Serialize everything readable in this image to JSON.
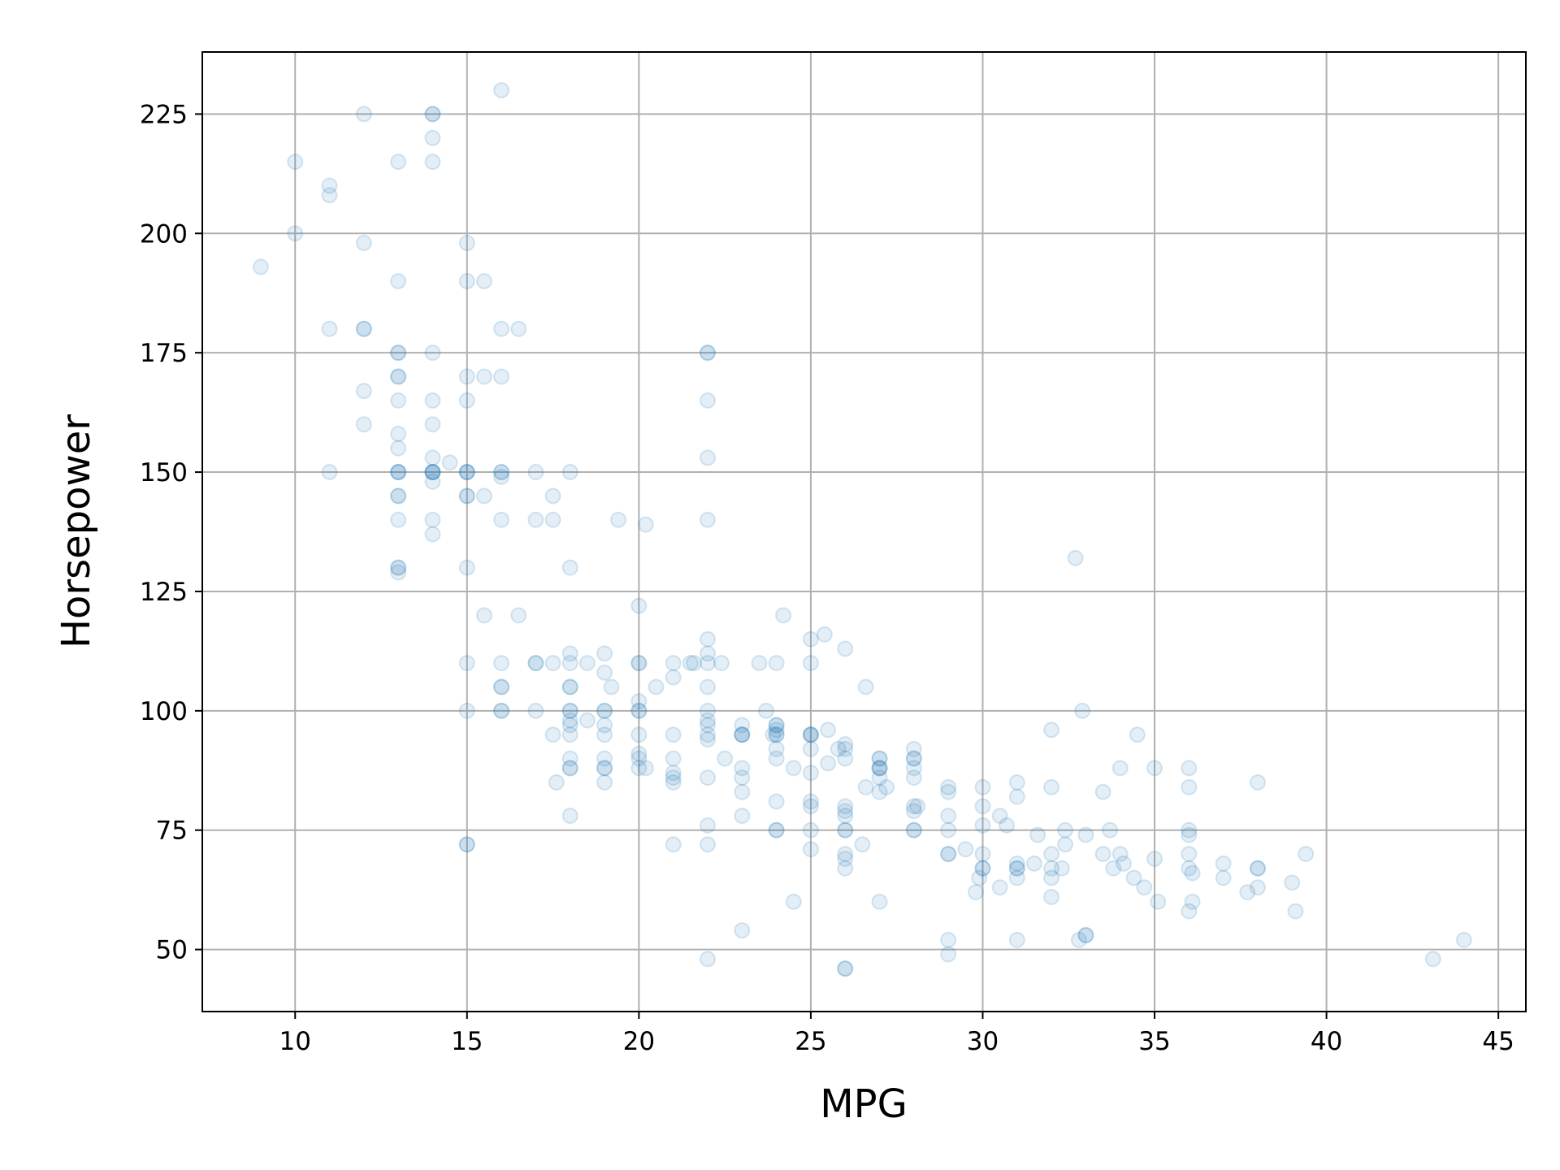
{
  "chart_data": {
    "type": "scatter",
    "title": "",
    "xlabel": "MPG",
    "ylabel": "Horsepower",
    "xlim": [
      7.3,
      45.8
    ],
    "ylim": [
      37,
      238
    ],
    "xticks": [
      10,
      15,
      20,
      25,
      30,
      35,
      40,
      45
    ],
    "yticks": [
      50,
      75,
      100,
      125,
      150,
      175,
      200,
      225
    ],
    "grid": true,
    "marker_color": "#1f77b4",
    "marker_alpha": 0.12,
    "points": [
      [
        9,
        193
      ],
      [
        10,
        215
      ],
      [
        10,
        200
      ],
      [
        11,
        210
      ],
      [
        11,
        208
      ],
      [
        11,
        180
      ],
      [
        11,
        150
      ],
      [
        12,
        225
      ],
      [
        12,
        198
      ],
      [
        12,
        180
      ],
      [
        12,
        180
      ],
      [
        12,
        167
      ],
      [
        12,
        160
      ],
      [
        13,
        215
      ],
      [
        13,
        190
      ],
      [
        13,
        175
      ],
      [
        13,
        175
      ],
      [
        13,
        170
      ],
      [
        13,
        170
      ],
      [
        13,
        165
      ],
      [
        13,
        158
      ],
      [
        13,
        155
      ],
      [
        13,
        150
      ],
      [
        13,
        150
      ],
      [
        13,
        150
      ],
      [
        13,
        145
      ],
      [
        13,
        145
      ],
      [
        13,
        140
      ],
      [
        13,
        130
      ],
      [
        13,
        130
      ],
      [
        13,
        129
      ],
      [
        14,
        225
      ],
      [
        14,
        225
      ],
      [
        14,
        220
      ],
      [
        14,
        215
      ],
      [
        14,
        175
      ],
      [
        14,
        165
      ],
      [
        14,
        160
      ],
      [
        14,
        153
      ],
      [
        14,
        150
      ],
      [
        14,
        150
      ],
      [
        14,
        150
      ],
      [
        14,
        150
      ],
      [
        14,
        148
      ],
      [
        14,
        140
      ],
      [
        14,
        137
      ],
      [
        14.5,
        152
      ],
      [
        15,
        198
      ],
      [
        15,
        190
      ],
      [
        15,
        170
      ],
      [
        15,
        165
      ],
      [
        15,
        150
      ],
      [
        15,
        150
      ],
      [
        15,
        150
      ],
      [
        15,
        145
      ],
      [
        15,
        145
      ],
      [
        15,
        130
      ],
      [
        15,
        110
      ],
      [
        15,
        100
      ],
      [
        15,
        72
      ],
      [
        15,
        72
      ],
      [
        15.5,
        190
      ],
      [
        15.5,
        170
      ],
      [
        15.5,
        145
      ],
      [
        15.5,
        120
      ],
      [
        16,
        230
      ],
      [
        16,
        180
      ],
      [
        16,
        170
      ],
      [
        16,
        150
      ],
      [
        16,
        150
      ],
      [
        16,
        149
      ],
      [
        16,
        140
      ],
      [
        16,
        110
      ],
      [
        16,
        105
      ],
      [
        16,
        105
      ],
      [
        16,
        100
      ],
      [
        16,
        100
      ],
      [
        16.5,
        180
      ],
      [
        16.5,
        120
      ],
      [
        17,
        150
      ],
      [
        17,
        140
      ],
      [
        17,
        110
      ],
      [
        17,
        110
      ],
      [
        17,
        100
      ],
      [
        17.5,
        145
      ],
      [
        17.5,
        140
      ],
      [
        17.5,
        110
      ],
      [
        17.5,
        95
      ],
      [
        17.6,
        85
      ],
      [
        18,
        150
      ],
      [
        18,
        130
      ],
      [
        18,
        112
      ],
      [
        18,
        110
      ],
      [
        18,
        105
      ],
      [
        18,
        105
      ],
      [
        18,
        100
      ],
      [
        18,
        100
      ],
      [
        18,
        98
      ],
      [
        18,
        97
      ],
      [
        18,
        95
      ],
      [
        18,
        90
      ],
      [
        18,
        88
      ],
      [
        18,
        88
      ],
      [
        18,
        78
      ],
      [
        18.5,
        110
      ],
      [
        18.5,
        98
      ],
      [
        19,
        112
      ],
      [
        19,
        108
      ],
      [
        19,
        100
      ],
      [
        19,
        100
      ],
      [
        19,
        97
      ],
      [
        19,
        95
      ],
      [
        19,
        90
      ],
      [
        19,
        88
      ],
      [
        19,
        88
      ],
      [
        19,
        85
      ],
      [
        19.2,
        105
      ],
      [
        19.4,
        140
      ],
      [
        20,
        122
      ],
      [
        20,
        110
      ],
      [
        20,
        110
      ],
      [
        20,
        102
      ],
      [
        20,
        100
      ],
      [
        20,
        100
      ],
      [
        20,
        95
      ],
      [
        20,
        91
      ],
      [
        20,
        90
      ],
      [
        20,
        88
      ],
      [
        20.2,
        139
      ],
      [
        20.2,
        88
      ],
      [
        20.5,
        105
      ],
      [
        21,
        110
      ],
      [
        21,
        107
      ],
      [
        21,
        95
      ],
      [
        21,
        90
      ],
      [
        21,
        87
      ],
      [
        21,
        86
      ],
      [
        21,
        85
      ],
      [
        21,
        72
      ],
      [
        21.5,
        110
      ],
      [
        21.6,
        110
      ],
      [
        22,
        175
      ],
      [
        22,
        175
      ],
      [
        22,
        165
      ],
      [
        22,
        153
      ],
      [
        22,
        140
      ],
      [
        22,
        115
      ],
      [
        22,
        112
      ],
      [
        22,
        110
      ],
      [
        22,
        105
      ],
      [
        22,
        100
      ],
      [
        22,
        98
      ],
      [
        22,
        97
      ],
      [
        22,
        95
      ],
      [
        22,
        94
      ],
      [
        22,
        86
      ],
      [
        22,
        76
      ],
      [
        22,
        72
      ],
      [
        22,
        48
      ],
      [
        22.4,
        110
      ],
      [
        22.5,
        90
      ],
      [
        23,
        97
      ],
      [
        23,
        95
      ],
      [
        23,
        95
      ],
      [
        23,
        95
      ],
      [
        23,
        88
      ],
      [
        23,
        86
      ],
      [
        23,
        83
      ],
      [
        23,
        78
      ],
      [
        23,
        54
      ],
      [
        23.5,
        110
      ],
      [
        23.7,
        100
      ],
      [
        23.9,
        95
      ],
      [
        24,
        110
      ],
      [
        24,
        97
      ],
      [
        24,
        97
      ],
      [
        24,
        96
      ],
      [
        24,
        95
      ],
      [
        24,
        95
      ],
      [
        24,
        92
      ],
      [
        24,
        90
      ],
      [
        24,
        81
      ],
      [
        24,
        75
      ],
      [
        24,
        75
      ],
      [
        24.2,
        120
      ],
      [
        24.5,
        88
      ],
      [
        24.5,
        60
      ],
      [
        25,
        115
      ],
      [
        25,
        110
      ],
      [
        25,
        95
      ],
      [
        25,
        95
      ],
      [
        25,
        95
      ],
      [
        25,
        92
      ],
      [
        25,
        87
      ],
      [
        25,
        81
      ],
      [
        25,
        80
      ],
      [
        25,
        75
      ],
      [
        25,
        71
      ],
      [
        25.4,
        116
      ],
      [
        25.5,
        96
      ],
      [
        25.5,
        89
      ],
      [
        25.8,
        92
      ],
      [
        26,
        113
      ],
      [
        26,
        93
      ],
      [
        26,
        92
      ],
      [
        26,
        90
      ],
      [
        26,
        80
      ],
      [
        26,
        79
      ],
      [
        26,
        78
      ],
      [
        26,
        75
      ],
      [
        26,
        75
      ],
      [
        26,
        70
      ],
      [
        26,
        69
      ],
      [
        26,
        67
      ],
      [
        26,
        46
      ],
      [
        26,
        46
      ],
      [
        26.5,
        72
      ],
      [
        26.6,
        105
      ],
      [
        26.6,
        84
      ],
      [
        27,
        90
      ],
      [
        27,
        90
      ],
      [
        27,
        88
      ],
      [
        27,
        88
      ],
      [
        27,
        88
      ],
      [
        27,
        86
      ],
      [
        27,
        83
      ],
      [
        27,
        60
      ],
      [
        27.2,
        84
      ],
      [
        28,
        92
      ],
      [
        28,
        90
      ],
      [
        28,
        90
      ],
      [
        28,
        88
      ],
      [
        28,
        86
      ],
      [
        28,
        80
      ],
      [
        28,
        79
      ],
      [
        28,
        75
      ],
      [
        28,
        75
      ],
      [
        28.1,
        80
      ],
      [
        29,
        84
      ],
      [
        29,
        83
      ],
      [
        29,
        78
      ],
      [
        29,
        75
      ],
      [
        29,
        70
      ],
      [
        29,
        70
      ],
      [
        29,
        52
      ],
      [
        29,
        49
      ],
      [
        29.5,
        71
      ],
      [
        29.8,
        62
      ],
      [
        29.9,
        65
      ],
      [
        30,
        84
      ],
      [
        30,
        80
      ],
      [
        30,
        76
      ],
      [
        30,
        70
      ],
      [
        30,
        67
      ],
      [
        30,
        67
      ],
      [
        30.5,
        78
      ],
      [
        30.5,
        63
      ],
      [
        30.7,
        76
      ],
      [
        31,
        85
      ],
      [
        31,
        82
      ],
      [
        31,
        68
      ],
      [
        31,
        67
      ],
      [
        31,
        67
      ],
      [
        31,
        65
      ],
      [
        31,
        52
      ],
      [
        31.5,
        68
      ],
      [
        31.6,
        74
      ],
      [
        32,
        96
      ],
      [
        32,
        84
      ],
      [
        32,
        70
      ],
      [
        32,
        67
      ],
      [
        32,
        65
      ],
      [
        32,
        61
      ],
      [
        32.3,
        67
      ],
      [
        32.4,
        75
      ],
      [
        32.4,
        72
      ],
      [
        32.7,
        132
      ],
      [
        32.8,
        52
      ],
      [
        32.9,
        100
      ],
      [
        33,
        74
      ],
      [
        33,
        53
      ],
      [
        33,
        53
      ],
      [
        33.5,
        83
      ],
      [
        33.5,
        70
      ],
      [
        33.7,
        75
      ],
      [
        33.8,
        67
      ],
      [
        34,
        88
      ],
      [
        34,
        70
      ],
      [
        34.1,
        68
      ],
      [
        34.4,
        65
      ],
      [
        34.5,
        95
      ],
      [
        34.7,
        63
      ],
      [
        35,
        88
      ],
      [
        35,
        69
      ],
      [
        35.1,
        60
      ],
      [
        36,
        88
      ],
      [
        36,
        84
      ],
      [
        36,
        75
      ],
      [
        36,
        74
      ],
      [
        36,
        70
      ],
      [
        36,
        67
      ],
      [
        36,
        58
      ],
      [
        36.1,
        66
      ],
      [
        36.1,
        60
      ],
      [
        37,
        68
      ],
      [
        37,
        65
      ],
      [
        37.7,
        62
      ],
      [
        38,
        85
      ],
      [
        38,
        67
      ],
      [
        38,
        67
      ],
      [
        38,
        63
      ],
      [
        39,
        64
      ],
      [
        39.1,
        58
      ],
      [
        39.4,
        70
      ],
      [
        43.1,
        48
      ],
      [
        44,
        52
      ]
    ]
  }
}
